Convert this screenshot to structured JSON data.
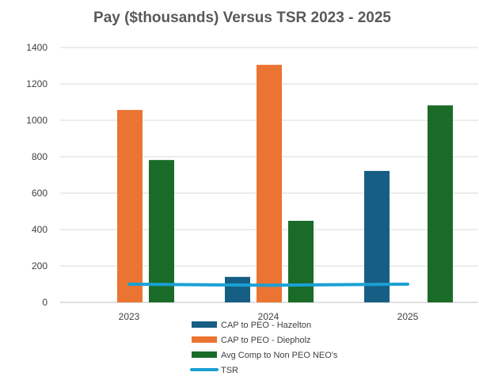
{
  "chart_data": {
    "type": "bar",
    "title": "Pay ($thousands) Versus TSR 2023 - 2025",
    "categories": [
      "2023",
      "2024",
      "2025"
    ],
    "ylim": [
      0,
      1400
    ],
    "yticks": [
      "0",
      "200",
      "400",
      "600",
      "800",
      "1000",
      "1200",
      "1400"
    ],
    "grid": true,
    "legend_position": "bottom",
    "series": [
      {
        "name": "CAP to PEO - Hazelton",
        "type": "bar",
        "color": "#165e83",
        "values": [
          null,
          140,
          722
        ]
      },
      {
        "name": "CAP to PEO - Diepholz",
        "type": "bar",
        "color": "#ec7432",
        "values": [
          1057,
          1305,
          null
        ]
      },
      {
        "name": "Avg Comp to Non PEO NEO's",
        "type": "bar",
        "color": "#1a6b28",
        "values": [
          782,
          448,
          1082
        ]
      },
      {
        "name": "TSR",
        "type": "line",
        "color": "#1ba0d4",
        "values": [
          100,
          94,
          100
        ]
      }
    ]
  }
}
